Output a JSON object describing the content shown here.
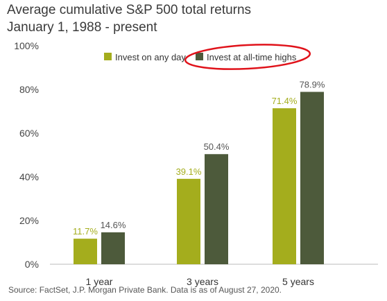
{
  "title": "Average cumulative S&P 500 total returns",
  "subtitle": "January 1, 1988 - present",
  "source": "Source: FactSet, J.P. Morgan Private Bank. Data is as of August 27, 2020.",
  "colors": {
    "any_day": "#a4ad1d",
    "all_time_highs": "#4d5a3b",
    "highlight_ring": "#e0121a",
    "any_day_label": "#a4ad1d",
    "all_time_label": "#555555"
  },
  "chart_data": {
    "type": "bar",
    "categories": [
      "1 year",
      "3 years",
      "5 years"
    ],
    "series": [
      {
        "name": "Invest on any day",
        "values": [
          11.7,
          39.1,
          71.4
        ],
        "labels": [
          "11.7%",
          "39.1%",
          "71.4%"
        ]
      },
      {
        "name": "Invest at all-time highs",
        "values": [
          14.6,
          50.4,
          78.9
        ],
        "labels": [
          "14.6%",
          "50.4%",
          "78.9%"
        ]
      }
    ],
    "ylim": [
      0,
      100
    ],
    "yticks": [
      0,
      20,
      40,
      60,
      80,
      100
    ],
    "ytick_labels": [
      "0%",
      "20%",
      "40%",
      "60%",
      "80%",
      "100%"
    ],
    "legend_placement": "top-right",
    "grid": false
  }
}
